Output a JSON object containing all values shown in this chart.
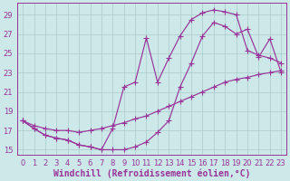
{
  "background_color": "#cce8e8",
  "grid_color": "#aacccc",
  "line_color": "#993399",
  "xlabel": "Windchill (Refroidissement éolien,°C)",
  "xlim": [
    -0.5,
    23.5
  ],
  "ylim": [
    14.5,
    30.2
  ],
  "xticks": [
    0,
    1,
    2,
    3,
    4,
    5,
    6,
    7,
    8,
    9,
    10,
    11,
    12,
    13,
    14,
    15,
    16,
    17,
    18,
    19,
    20,
    21,
    22,
    23
  ],
  "yticks": [
    15,
    17,
    19,
    21,
    23,
    25,
    27,
    29
  ],
  "curve1_x": [
    0,
    1,
    2,
    3,
    4,
    5,
    6,
    7,
    8,
    9,
    10,
    11,
    12,
    13,
    14,
    15,
    16,
    17,
    18,
    19,
    20,
    21,
    22,
    23
  ],
  "curve1_y": [
    18.0,
    17.2,
    16.5,
    16.2,
    16.0,
    15.5,
    15.3,
    15.0,
    17.2,
    21.5,
    22.0,
    26.6,
    22.0,
    24.5,
    26.8,
    28.5,
    29.2,
    29.5,
    29.3,
    29.0,
    25.3,
    24.8,
    24.5,
    24.0
  ],
  "curve2_x": [
    0,
    1,
    2,
    3,
    4,
    5,
    6,
    7,
    8,
    9,
    10,
    11,
    12,
    13,
    14,
    15,
    16,
    17,
    18,
    19,
    20,
    21,
    22,
    23
  ],
  "curve2_y": [
    18.0,
    17.2,
    16.5,
    16.2,
    16.0,
    15.5,
    15.3,
    15.0,
    15.0,
    15.0,
    15.3,
    15.8,
    16.8,
    18.0,
    21.5,
    24.0,
    26.8,
    28.2,
    27.8,
    27.0,
    27.5,
    24.6,
    26.5,
    23.0
  ],
  "curve3_x": [
    0,
    1,
    2,
    3,
    4,
    5,
    6,
    7,
    8,
    9,
    10,
    11,
    12,
    13,
    14,
    15,
    16,
    17,
    18,
    19,
    20,
    21,
    22,
    23
  ],
  "curve3_y": [
    18.0,
    17.5,
    17.2,
    17.0,
    17.0,
    16.8,
    17.0,
    17.2,
    17.5,
    17.8,
    18.2,
    18.5,
    19.0,
    19.5,
    20.0,
    20.5,
    21.0,
    21.5,
    22.0,
    22.3,
    22.5,
    22.8,
    23.0,
    23.2
  ],
  "tick_fontsize": 6.0,
  "xlabel_fontsize": 7,
  "marker_size": 2.0,
  "linewidth": 0.85
}
